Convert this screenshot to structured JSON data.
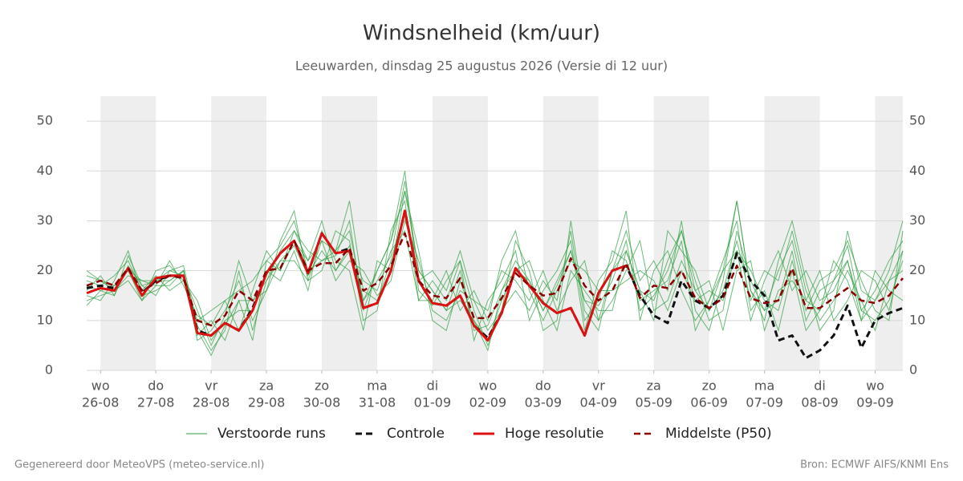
{
  "chart_data": {
    "type": "line",
    "title": "Windsnelheid (km/uur)",
    "subtitle": "Leeuwarden, dinsdag 25 augustus 2026 (Versie di 12 uur)",
    "footer_left": "Gegenereerd door MeteoVPS (meteo-service.nl)",
    "footer_right": "Bron: ECMWF AIFS/KNMI Ens",
    "x": [
      -0.25,
      0,
      0.25,
      0.5,
      0.75,
      1,
      1.25,
      1.5,
      1.75,
      2,
      2.25,
      2.5,
      2.75,
      3,
      3.25,
      3.5,
      3.75,
      4,
      4.25,
      4.5,
      4.75,
      5,
      5.25,
      5.5,
      5.75,
      6,
      6.25,
      6.5,
      6.75,
      7,
      7.25,
      7.5,
      7.75,
      8,
      8.25,
      8.5,
      8.75,
      9,
      9.25,
      9.5,
      9.75,
      10,
      10.25,
      10.5,
      10.75,
      11,
      11.25,
      11.5,
      11.75,
      12,
      12.25,
      12.5,
      12.75,
      13,
      13.25,
      13.5,
      13.75,
      14,
      14.25,
      14.5
    ],
    "xlim": [
      -0.25,
      14.5
    ],
    "xticks": [
      {
        "value": 0,
        "label": "wo",
        "date": "26-08"
      },
      {
        "value": 1,
        "label": "do",
        "date": "27-08"
      },
      {
        "value": 2,
        "label": "vr",
        "date": "28-08"
      },
      {
        "value": 3,
        "label": "za",
        "date": "29-08"
      },
      {
        "value": 4,
        "label": "zo",
        "date": "30-08"
      },
      {
        "value": 5,
        "label": "ma",
        "date": "31-08"
      },
      {
        "value": 6,
        "label": "di",
        "date": "01-09"
      },
      {
        "value": 7,
        "label": "wo",
        "date": "02-09"
      },
      {
        "value": 8,
        "label": "do",
        "date": "03-09"
      },
      {
        "value": 9,
        "label": "vr",
        "date": "04-09"
      },
      {
        "value": 10,
        "label": "za",
        "date": "05-09"
      },
      {
        "value": 11,
        "label": "zo",
        "date": "06-09"
      },
      {
        "value": 12,
        "label": "ma",
        "date": "07-09"
      },
      {
        "value": 13,
        "label": "di",
        "date": "08-09"
      },
      {
        "value": 14,
        "label": "wo",
        "date": "09-09"
      }
    ],
    "ylim": [
      0,
      55
    ],
    "yticks": [
      0,
      10,
      20,
      30,
      40,
      50
    ],
    "y2lim": [
      0,
      55
    ],
    "y2ticks": [
      0,
      10,
      20,
      30,
      40,
      50
    ],
    "grid": true,
    "weekend_shading": "#eeeeee",
    "legend": "bottom",
    "ensemble": {
      "name": "Verstoorde runs",
      "color": "#2e9e3e",
      "members": [
        [
          17,
          16,
          15,
          21,
          17,
          18,
          20,
          19,
          12,
          5,
          11,
          22,
          14,
          18,
          22,
          25,
          19,
          24,
          20,
          25,
          14,
          18,
          23,
          38,
          20,
          16,
          12,
          20,
          8,
          9,
          16,
          22,
          18,
          12,
          17,
          24,
          14,
          13,
          18,
          26,
          12,
          15,
          20,
          28,
          18,
          10,
          12,
          28,
          18,
          12,
          14,
          24,
          10,
          16,
          18,
          25,
          12,
          10,
          14,
          22
        ],
        [
          15,
          14,
          18,
          24,
          15,
          16,
          18,
          20,
          8,
          3,
          9,
          14,
          6,
          22,
          25,
          30,
          20,
          22,
          23,
          30,
          12,
          20,
          26,
          40,
          16,
          13,
          18,
          22,
          12,
          5,
          12,
          26,
          20,
          8,
          10,
          30,
          12,
          8,
          20,
          28,
          18,
          22,
          16,
          30,
          12,
          8,
          18,
          34,
          16,
          10,
          22,
          30,
          18,
          8,
          12,
          28,
          16,
          14,
          20,
          30
        ],
        [
          19,
          18,
          17,
          20,
          14,
          20,
          21,
          18,
          10,
          12,
          14,
          8,
          16,
          24,
          20,
          28,
          22,
          26,
          18,
          22,
          20,
          15,
          18,
          30,
          22,
          12,
          10,
          16,
          14,
          12,
          20,
          18,
          14,
          20,
          12,
          18,
          22,
          10,
          14,
          20,
          26,
          12,
          14,
          22,
          16,
          18,
          8,
          20,
          22,
          8,
          16,
          18,
          14,
          20,
          10,
          14,
          20,
          18,
          12,
          24
        ],
        [
          14,
          15,
          16,
          19,
          18,
          17,
          17,
          20,
          6,
          8,
          12,
          18,
          10,
          16,
          26,
          32,
          18,
          20,
          28,
          26,
          10,
          12,
          28,
          34,
          14,
          18,
          14,
          22,
          6,
          14,
          18,
          24,
          10,
          16,
          20,
          26,
          8,
          18,
          22,
          32,
          10,
          20,
          24,
          16,
          10,
          14,
          22,
          30,
          12,
          16,
          8,
          20,
          8,
          12,
          22,
          18,
          10,
          20,
          16,
          14
        ],
        [
          18,
          17,
          19,
          22,
          16,
          19,
          16,
          18,
          14,
          6,
          10,
          12,
          12,
          20,
          18,
          24,
          16,
          28,
          22,
          20,
          8,
          22,
          20,
          36,
          24,
          10,
          8,
          18,
          10,
          6,
          14,
          20,
          22,
          14,
          8,
          20,
          16,
          12,
          12,
          24,
          16,
          10,
          28,
          24,
          20,
          12,
          16,
          26,
          14,
          20,
          18,
          28,
          16,
          10,
          14,
          20,
          14,
          8,
          18,
          20
        ],
        [
          16,
          19,
          15,
          23,
          17,
          15,
          20,
          21,
          9,
          4,
          8,
          20,
          8,
          18,
          24,
          28,
          24,
          22,
          24,
          34,
          16,
          14,
          22,
          32,
          18,
          20,
          16,
          24,
          14,
          8,
          12,
          16,
          12,
          18,
          14,
          28,
          10,
          14,
          24,
          22,
          14,
          16,
          18,
          26,
          8,
          14,
          20,
          24,
          20,
          14,
          12,
          22,
          12,
          18,
          20,
          26,
          18,
          12,
          10,
          28
        ],
        [
          20,
          18,
          16,
          18,
          14,
          17,
          22,
          17,
          11,
          9,
          14,
          16,
          18,
          22,
          20,
          26,
          22,
          30,
          20,
          24,
          18,
          16,
          24,
          28,
          14,
          14,
          20,
          12,
          16,
          10,
          22,
          28,
          16,
          10,
          16,
          22,
          20,
          16,
          16,
          18,
          20,
          18,
          12,
          20,
          14,
          16,
          14,
          24,
          10,
          18,
          24,
          16,
          20,
          14,
          16,
          22,
          12,
          16,
          22,
          26
        ],
        [
          13,
          16,
          17,
          20,
          18,
          18,
          18,
          20,
          7,
          10,
          6,
          14,
          14,
          16,
          22,
          22,
          18,
          26,
          24,
          28,
          14,
          20,
          26,
          36,
          20,
          16,
          12,
          14,
          10,
          4,
          16,
          20,
          18,
          12,
          18,
          24,
          14,
          10,
          20,
          24,
          16,
          14,
          22,
          28,
          16,
          12,
          20,
          34,
          16,
          12,
          20,
          26,
          14,
          12,
          18,
          22,
          10,
          14,
          18,
          24
        ]
      ]
    },
    "series": [
      {
        "name": "Controle",
        "color": "#111111",
        "dash": true,
        "width": 3,
        "values": [
          16.5,
          17,
          16.5,
          20.5,
          15.5,
          18,
          19,
          19,
          8,
          7,
          9.5,
          8,
          12.5,
          19.5,
          23.5,
          26,
          19.5,
          27.5,
          23.5,
          24.5,
          12.5,
          13.5,
          20,
          32,
          18,
          13.5,
          13,
          15,
          9,
          6.5,
          11.5,
          20.5,
          17,
          13.5,
          11.5,
          12.5,
          7,
          15.5,
          20,
          21,
          15,
          11,
          9.5,
          18,
          14,
          12.5,
          15,
          23.5,
          18,
          15,
          6,
          7,
          2.5,
          4,
          7,
          13,
          4.5,
          10,
          11.5,
          12.5
        ]
      },
      {
        "name": "Hoge resolutie",
        "color": "#dd1111",
        "dash": false,
        "width": 3,
        "values": [
          15.5,
          16.5,
          16,
          20.5,
          15,
          18.5,
          19,
          19,
          7.5,
          7,
          9.5,
          8,
          12,
          19.5,
          23.5,
          26,
          19.5,
          27.5,
          23.5,
          24,
          12.5,
          13.5,
          20,
          32,
          18,
          13.5,
          13,
          15,
          9,
          6,
          11.5,
          20.5,
          17,
          13.5,
          11.5,
          12.5,
          7,
          15.5,
          20,
          21,
          null,
          null,
          null,
          null,
          null,
          null,
          null,
          null,
          null,
          null,
          null,
          null,
          null,
          null,
          null,
          null,
          null,
          null,
          null,
          null
        ]
      },
      {
        "name": "Middelste (P50)",
        "color": "#8b0000",
        "dash": true,
        "width": 2.5,
        "values": [
          17,
          18,
          17,
          20.5,
          16,
          17.5,
          19,
          18.5,
          10,
          9,
          11,
          16,
          14,
          20,
          20.5,
          26,
          20,
          21.5,
          21.5,
          24.5,
          16,
          17.5,
          21,
          27.5,
          18,
          15,
          14.5,
          18.5,
          10.5,
          10.5,
          14.5,
          19.5,
          17,
          15,
          15.5,
          22.5,
          17,
          14,
          16,
          21.5,
          14.5,
          17,
          16.5,
          20,
          14.5,
          12.5,
          14.5,
          21,
          14.5,
          13.5,
          14,
          20.5,
          12.5,
          12.5,
          14.5,
          16.5,
          14,
          13.5,
          15,
          18.5
        ]
      }
    ]
  }
}
